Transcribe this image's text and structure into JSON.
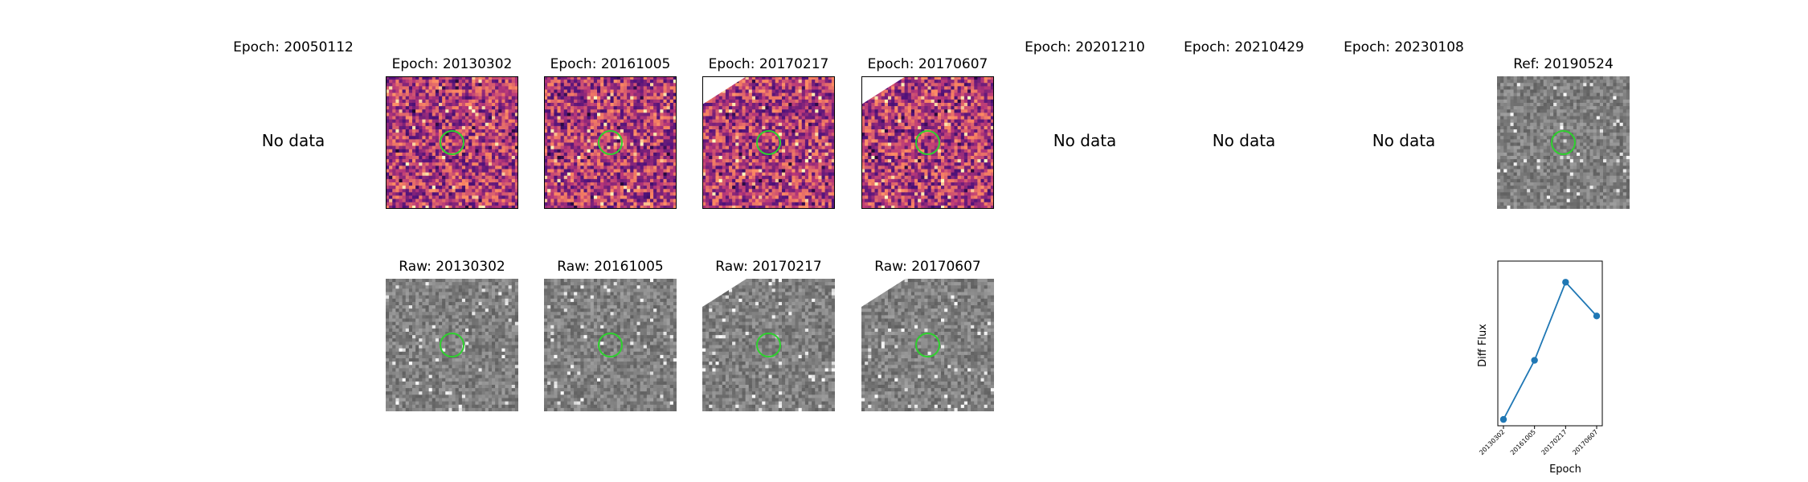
{
  "top_row": [
    {
      "title": "Epoch: 20050112",
      "status": "No data"
    },
    {
      "title": "Epoch: 20130302",
      "palette": "magma",
      "seed": 11
    },
    {
      "title": "Epoch: 20161005",
      "palette": "magma",
      "seed": 23
    },
    {
      "title": "Epoch: 20170217",
      "palette": "magma",
      "seed": 37
    },
    {
      "title": "Epoch: 20170607",
      "palette": "magma",
      "seed": 41
    },
    {
      "title": "Epoch: 20201210",
      "status": "No data"
    },
    {
      "title": "Epoch: 20210429",
      "status": "No data"
    },
    {
      "title": "Epoch: 20230108",
      "status": "No data"
    },
    {
      "title": "Ref: 20190524",
      "palette": "gray",
      "seed": 53
    }
  ],
  "bottom_row": [
    {
      "title": "Raw: 20130302",
      "palette": "gray",
      "seed": 61
    },
    {
      "title": "Raw: 20161005",
      "palette": "gray",
      "seed": 71
    },
    {
      "title": "Raw: 20170217",
      "palette": "gray",
      "seed": 83
    },
    {
      "title": "Raw: 20170607",
      "palette": "gray",
      "seed": 97
    }
  ],
  "colors": {
    "aperture": "#2fd02f",
    "line": "#1f77b4"
  },
  "chart_data": {
    "type": "line",
    "title": "",
    "xlabel": "Epoch",
    "ylabel": "Diff Flux",
    "categories": [
      "20130302",
      "20161005",
      "20170217",
      "20170607"
    ],
    "series": [
      {
        "values": [
          0.0,
          0.28,
          0.65,
          0.49
        ]
      }
    ],
    "ylim": [
      -0.03,
      0.75
    ],
    "grid": false,
    "y_tick_labels_shown": false
  }
}
